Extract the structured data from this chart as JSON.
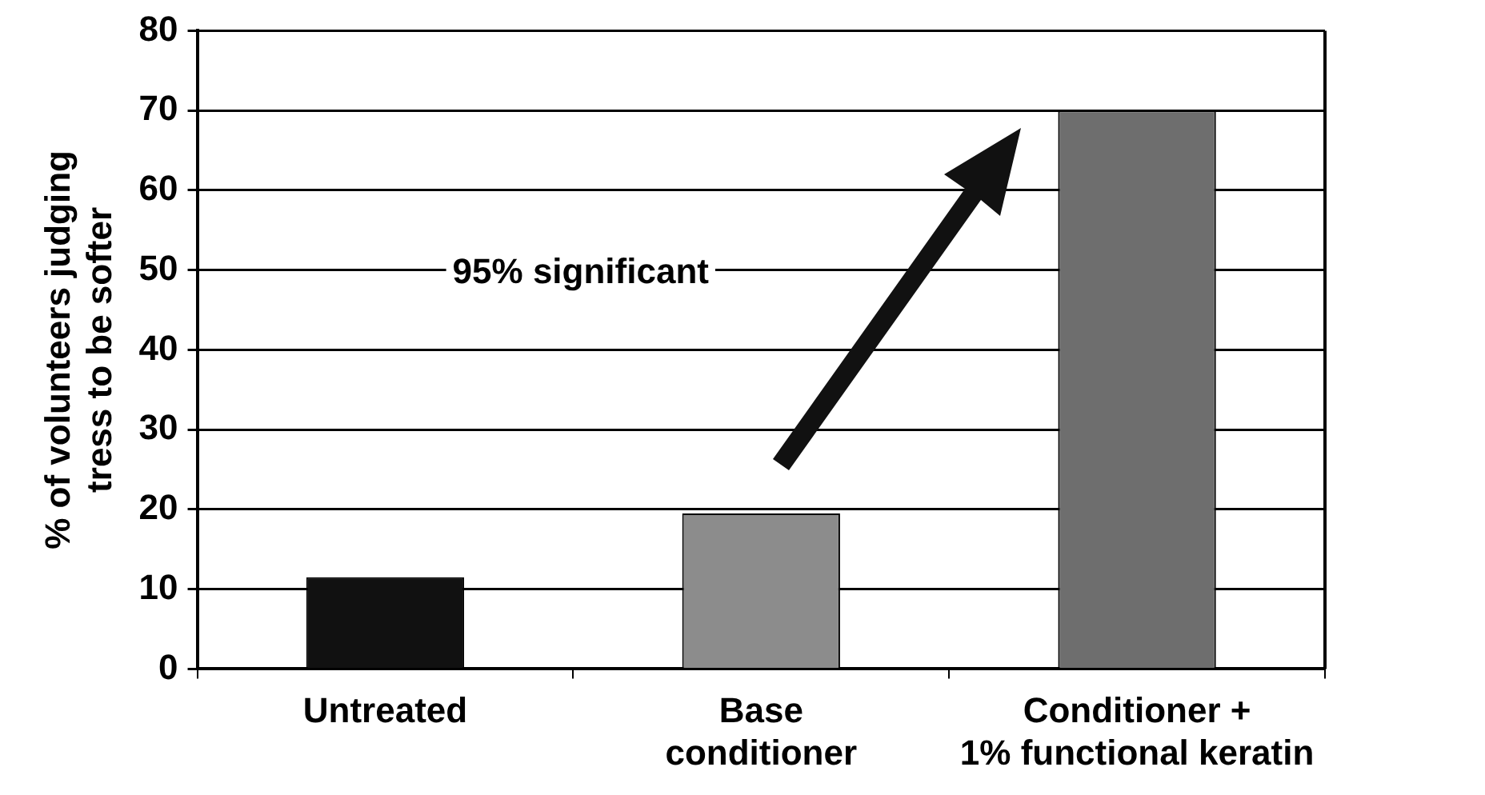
{
  "chart_data": {
    "type": "bar",
    "ylabel": "% of volunteers judging\ntress to be softer",
    "categories": [
      "Untreated",
      "Base\nconditioner",
      "Conditioner +\n1% functional keratin"
    ],
    "values": [
      11.5,
      19.5,
      70
    ],
    "colors": [
      "#111111",
      "#8c8c8c",
      "#6e6e6e"
    ],
    "ylim": [
      0,
      80
    ],
    "yticks": [
      0,
      10,
      20,
      30,
      40,
      50,
      60,
      70,
      80
    ],
    "grid": "y",
    "annotations": [
      "95% significant"
    ]
  }
}
